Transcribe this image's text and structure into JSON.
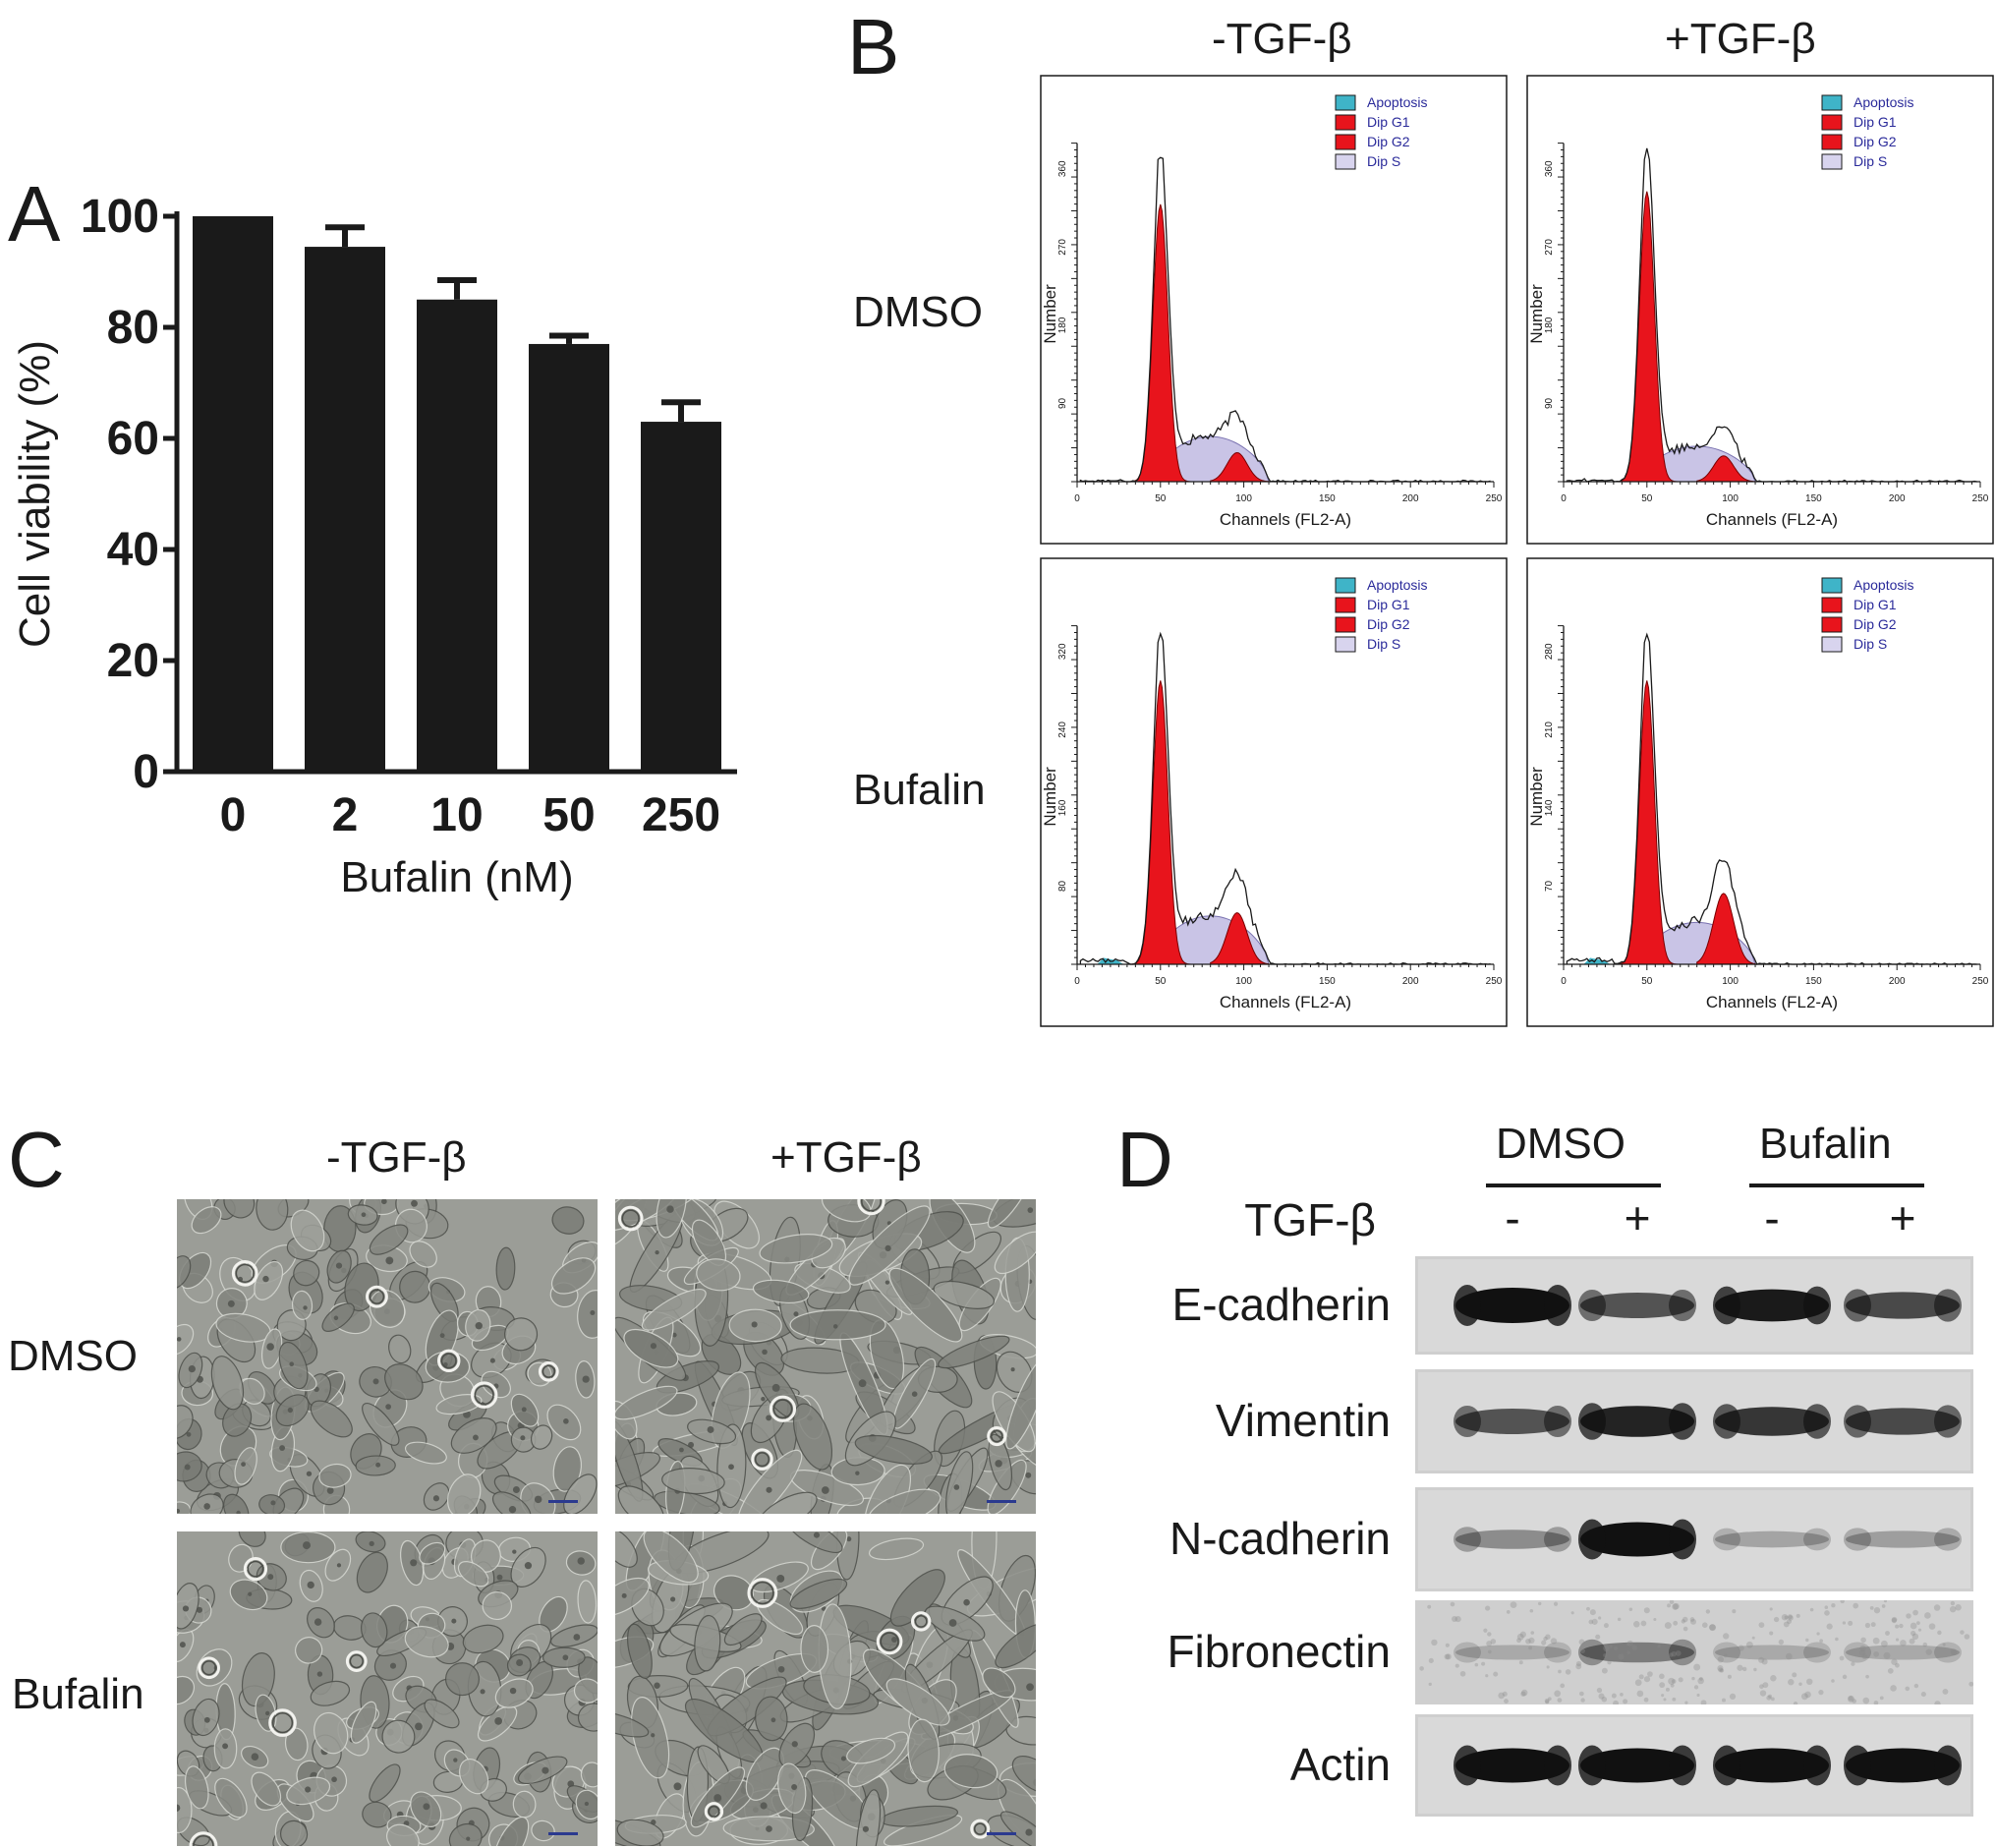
{
  "panel_letters": {
    "a": "A",
    "b": "B",
    "c": "C",
    "d": "D"
  },
  "chart_data": {
    "type": "bar",
    "categories": [
      "0",
      "2",
      "10",
      "50",
      "250"
    ],
    "values": [
      100,
      94.5,
      85,
      77,
      63
    ],
    "errors": [
      0,
      3.5,
      3.5,
      1.5,
      3.5
    ],
    "ylim": [
      0,
      100
    ],
    "yticks": [
      "0",
      "20",
      "40",
      "60",
      "80",
      "100"
    ],
    "xlabel": "Bufalin (nM)",
    "ylabel": "Cell viability (%)",
    "color": "#1a1a1a"
  },
  "flow": {
    "col_headers": [
      "-TGF-β",
      "+TGF-β"
    ],
    "row_labels": [
      "DMSO",
      "Bufalin"
    ],
    "xlabel": "Channels (FL2-A)",
    "ylabel": "Number",
    "xticks": [
      "0",
      "50",
      "100",
      "150",
      "200",
      "250"
    ],
    "legend": [
      {
        "label": "Apoptosis",
        "color": "#3fb4c8"
      },
      {
        "label": "Dip G1",
        "color": "#e8141c"
      },
      {
        "label": "Dip G2",
        "color": "#e8141c"
      },
      {
        "label": "Dip S",
        "color": "#c9c4e6"
      }
    ],
    "yticks": [
      [
        "90",
        "180",
        "270",
        "360"
      ],
      [
        "90",
        "180",
        "270",
        "360"
      ],
      [
        "80",
        "160",
        "240",
        "320"
      ],
      [
        "70",
        "140",
        "210",
        "280"
      ]
    ]
  },
  "micro": {
    "col_headers": [
      "-TGF-β",
      "+TGF-β"
    ],
    "row_labels": [
      "DMSO",
      "Bufalin"
    ]
  },
  "blot": {
    "groups": [
      "DMSO",
      "Bufalin"
    ],
    "treatment_label": "TGF-β",
    "lanes": [
      "-",
      "+",
      "-",
      "+"
    ],
    "proteins": [
      "E-cadherin",
      "Vimentin",
      "N-cadherin",
      "Fibronectin",
      "Actin"
    ],
    "intensity": {
      "E-cadherin": [
        1.0,
        0.55,
        0.85,
        0.6
      ],
      "Vimentin": [
        0.55,
        0.8,
        0.7,
        0.6
      ],
      "N-cadherin": [
        0.25,
        0.95,
        0.12,
        0.15
      ],
      "Fibronectin": [
        0.05,
        0.3,
        0.05,
        0.05
      ],
      "Actin": [
        0.95,
        0.95,
        0.95,
        0.95
      ]
    }
  }
}
